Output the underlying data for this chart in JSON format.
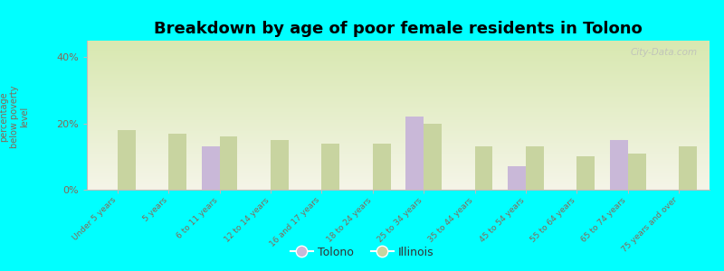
{
  "title": "Breakdown by age of poor female residents in Tolono",
  "categories": [
    "Under 5 years",
    "5 years",
    "6 to 11 years",
    "12 to 14 years",
    "16 and 17 years",
    "18 to 24 years",
    "25 to 34 years",
    "35 to 44 years",
    "45 to 54 years",
    "55 to 64 years",
    "65 to 74 years",
    "75 years and over"
  ],
  "tolono_values": [
    0,
    0,
    13.0,
    0,
    0,
    0,
    22.0,
    0,
    7.0,
    0,
    15.0,
    0
  ],
  "illinois_values": [
    18.0,
    17.0,
    16.0,
    15.0,
    14.0,
    14.0,
    20.0,
    13.0,
    13.0,
    10.0,
    11.0,
    13.0
  ],
  "tolono_color": "#c9b8d8",
  "illinois_color": "#c8d4a0",
  "ylabel": "percentage\nbelow poverty\nlevel",
  "ylim": [
    0,
    45
  ],
  "yticks": [
    0,
    20,
    40
  ],
  "ytick_labels": [
    "0%",
    "20%",
    "40%"
  ],
  "bg_top_color": "#d8e8b0",
  "bg_bottom_color": "#f5f5e8",
  "outer_background": "#00ffff",
  "watermark": "City-Data.com",
  "title_fontsize": 13,
  "bar_width": 0.35,
  "tick_label_color": "#886655",
  "ylabel_color": "#886655"
}
